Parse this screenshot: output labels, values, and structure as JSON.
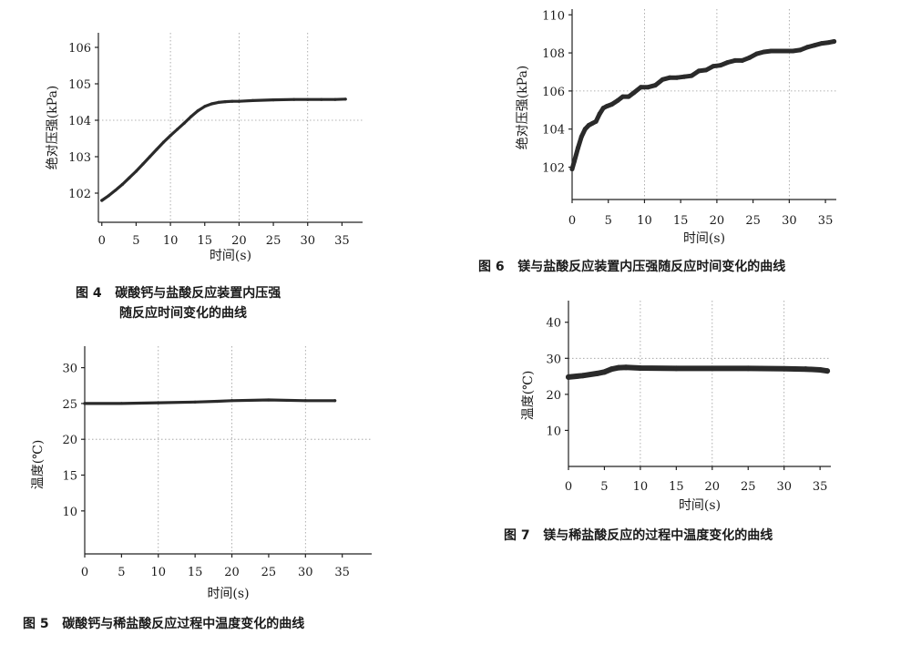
{
  "chart_data": [
    {
      "id": "fig4",
      "type": "line",
      "caption_label": "图 4",
      "caption_lines": [
        "碳酸钙与盐酸反应装置内压强",
        "随反应时间变化的曲线"
      ],
      "xlabel": "时间(s)",
      "ylabel": "绝对压强(kPa)",
      "xlim": [
        -0.5,
        38
      ],
      "ylim": [
        101.2,
        106.4
      ],
      "xticks": [
        0,
        5,
        10,
        15,
        20,
        25,
        30,
        35
      ],
      "yticks": [
        102,
        103,
        104,
        105,
        106
      ],
      "grid_x": [
        10,
        20,
        30
      ],
      "grid_y": [
        104
      ],
      "series": [
        {
          "x": [
            0,
            1,
            2,
            3,
            4,
            5,
            6,
            7,
            8,
            9,
            10,
            11,
            12,
            13,
            14,
            15,
            16,
            17,
            18,
            19,
            20,
            22,
            25,
            28,
            30,
            32,
            34,
            35.5
          ],
          "values": [
            101.8,
            101.93,
            102.08,
            102.24,
            102.42,
            102.6,
            102.8,
            103.0,
            103.2,
            103.4,
            103.58,
            103.75,
            103.92,
            104.1,
            104.26,
            104.38,
            104.45,
            104.49,
            104.51,
            104.52,
            104.52,
            104.54,
            104.56,
            104.57,
            104.57,
            104.57,
            104.57,
            104.58
          ]
        }
      ]
    },
    {
      "id": "fig5",
      "type": "line",
      "caption_label": "图 5",
      "caption_lines": [
        "碳酸钙与稀盐酸反应过程中温度变化的曲线"
      ],
      "xlabel": "时间(s)",
      "ylabel": "温度(℃)",
      "xlim": [
        0,
        39
      ],
      "ylim": [
        4,
        33
      ],
      "xticks": [
        0,
        5,
        10,
        15,
        20,
        25,
        30,
        35
      ],
      "yticks": [
        10,
        15,
        20,
        25,
        30
      ],
      "grid_x": [
        10,
        20,
        30
      ],
      "grid_y": [
        20
      ],
      "series": [
        {
          "x": [
            0,
            5,
            10,
            15,
            18,
            20,
            25,
            30,
            34
          ],
          "values": [
            25.0,
            25.0,
            25.1,
            25.2,
            25.3,
            25.4,
            25.5,
            25.4,
            25.4
          ]
        }
      ]
    },
    {
      "id": "fig6",
      "type": "line",
      "caption_label": "图 6",
      "caption_lines": [
        "镁与盐酸反应装置内压强随反应时间变化的曲线"
      ],
      "xlabel": "时间(s)",
      "ylabel": "绝对压强(kPa)",
      "xlim": [
        0,
        36.5
      ],
      "ylim": [
        100.3,
        110.3
      ],
      "xticks": [
        0,
        5,
        10,
        15,
        20,
        25,
        30,
        35
      ],
      "yticks": [
        102,
        104,
        106,
        108,
        110
      ],
      "grid_x": [
        10,
        20,
        30
      ],
      "grid_y": [
        106
      ],
      "series": [
        {
          "x": [
            0,
            0.3,
            0.8,
            1.3,
            1.8,
            2.3,
            2.8,
            3.3,
            3.8,
            4.3,
            4.8,
            5.5,
            6.3,
            7.0,
            7.8,
            8.5,
            9.5,
            10.5,
            11.5,
            12.5,
            13.5,
            14.5,
            15.5,
            16.5,
            17.5,
            18.5,
            19.5,
            20.5,
            21.5,
            22.5,
            23.5,
            24.5,
            25.5,
            26.5,
            27.5,
            28.5,
            29.5,
            30.5,
            31.5,
            32.5,
            33.5,
            34.5,
            35.5,
            36.2
          ],
          "values": [
            101.9,
            102.3,
            103.0,
            103.6,
            104.0,
            104.2,
            104.3,
            104.4,
            104.8,
            105.1,
            105.2,
            105.3,
            105.5,
            105.7,
            105.7,
            105.9,
            106.2,
            106.2,
            106.3,
            106.6,
            106.7,
            106.7,
            106.75,
            106.8,
            107.05,
            107.1,
            107.3,
            107.35,
            107.5,
            107.6,
            107.6,
            107.75,
            107.95,
            108.05,
            108.1,
            108.1,
            108.1,
            108.1,
            108.15,
            108.3,
            108.4,
            108.5,
            108.55,
            108.6
          ]
        }
      ]
    },
    {
      "id": "fig7",
      "type": "line",
      "caption_label": "图 7",
      "caption_lines": [
        "镁与稀盐酸反应的过程中温度变化的曲线"
      ],
      "xlabel": "时间(s)",
      "ylabel": "温度(℃)",
      "xlim": [
        0,
        36.5
      ],
      "ylim": [
        0,
        46
      ],
      "xticks": [
        0,
        5,
        10,
        15,
        20,
        25,
        30,
        35
      ],
      "yticks": [
        10,
        20,
        30,
        40
      ],
      "grid_x": [
        10,
        20,
        30
      ],
      "grid_y": [
        30
      ],
      "series": [
        {
          "x": [
            0,
            2,
            4,
            5,
            6,
            7,
            8,
            10,
            15,
            20,
            25,
            30,
            33,
            35,
            36
          ],
          "values": [
            24.8,
            25.2,
            25.8,
            26.2,
            27.0,
            27.4,
            27.5,
            27.3,
            27.2,
            27.2,
            27.2,
            27.1,
            27.0,
            26.8,
            26.5
          ]
        }
      ]
    }
  ]
}
